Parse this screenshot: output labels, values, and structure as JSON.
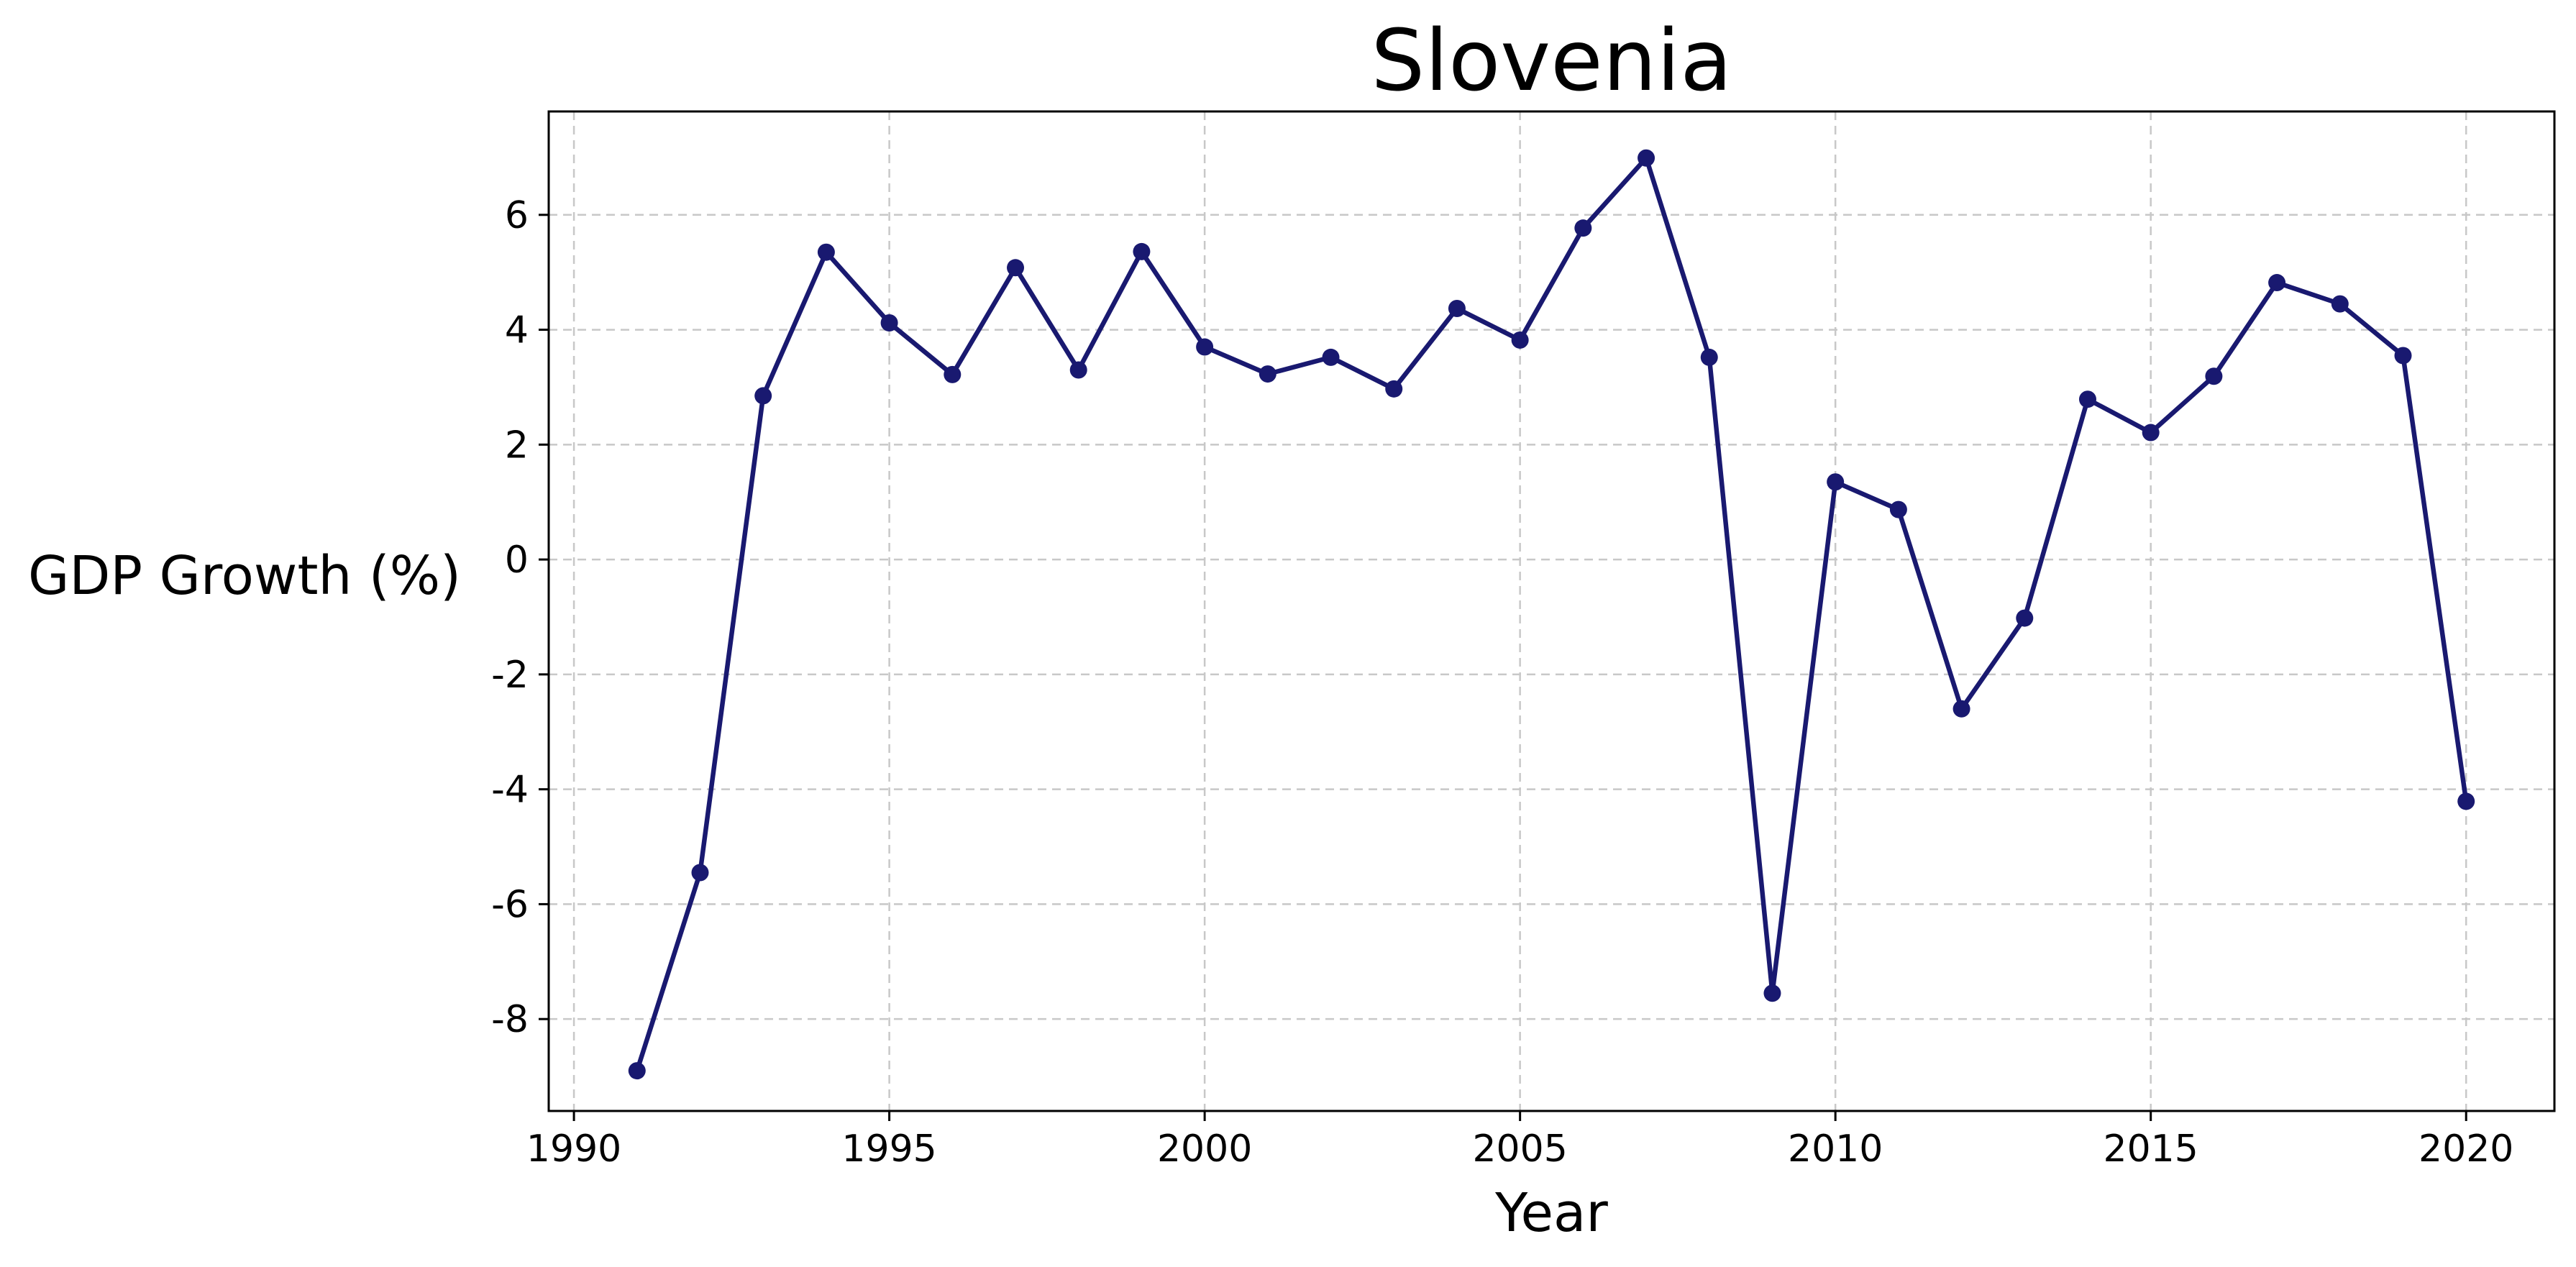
{
  "chart_data": {
    "type": "line",
    "title": "Slovenia",
    "xlabel": "Year",
    "ylabel": "GDP Growth (%)",
    "xlim": [
      1989.6,
      2021.4
    ],
    "ylim": [
      -9.6,
      7.8
    ],
    "xticks": [
      1990,
      1995,
      2000,
      2005,
      2010,
      2015,
      2020
    ],
    "yticks": [
      -8,
      -6,
      -4,
      -2,
      0,
      2,
      4,
      6
    ],
    "grid": true,
    "colors": {
      "series": "#191970",
      "grid": "#c8c8c8",
      "frame": "#000000"
    },
    "series": [
      {
        "marker": "circle",
        "x": [
          1991,
          1992,
          1993,
          1994,
          1995,
          1996,
          1997,
          1998,
          1999,
          2000,
          2001,
          2002,
          2003,
          2004,
          2005,
          2006,
          2007,
          2008,
          2009,
          2010,
          2011,
          2012,
          2013,
          2014,
          2015,
          2016,
          2017,
          2018,
          2019,
          2020
        ],
        "y": [
          -8.9,
          -5.45,
          2.85,
          5.35,
          4.12,
          3.22,
          5.08,
          3.3,
          5.36,
          3.7,
          3.23,
          3.52,
          2.97,
          4.37,
          3.82,
          5.77,
          6.99,
          3.52,
          -7.55,
          1.35,
          0.87,
          -2.6,
          -1.02,
          2.79,
          2.21,
          3.19,
          4.82,
          4.45,
          3.55,
          -4.21
        ]
      }
    ]
  }
}
